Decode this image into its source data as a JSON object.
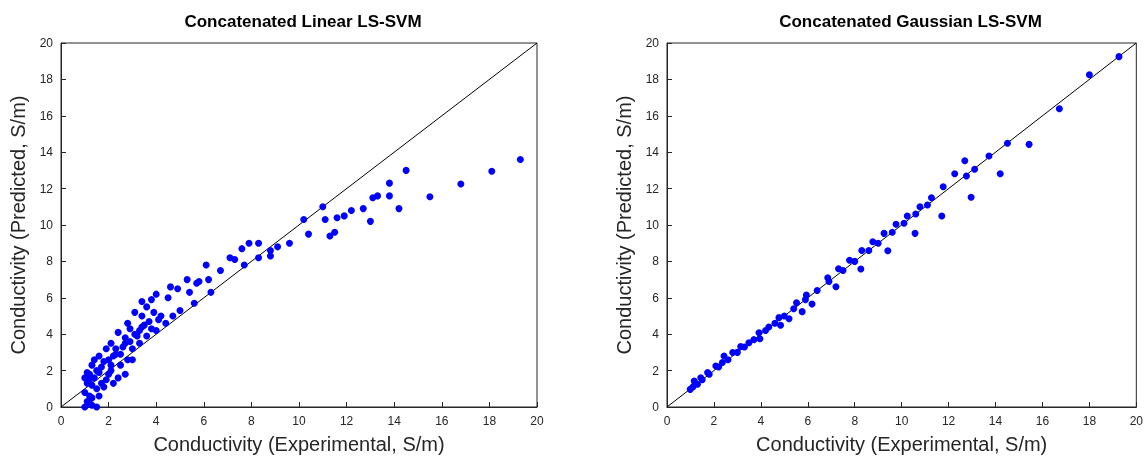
{
  "chart_data": [
    {
      "type": "scatter",
      "title": "Concatenated Linear LS-SVM",
      "xlabel": "Conductivity (Experimental, S/m)",
      "ylabel": "Conductivity (Predicted, S/m)",
      "xlim": [
        0,
        20
      ],
      "ylim": [
        0,
        20
      ],
      "xticks": [
        0,
        2,
        4,
        6,
        8,
        10,
        12,
        14,
        16,
        18,
        20
      ],
      "yticks": [
        0,
        2,
        4,
        6,
        8,
        10,
        12,
        14,
        16,
        18,
        20
      ],
      "series": [
        {
          "color": "#0000ff",
          "marker": "circle",
          "x": [
            19.3,
            18.1,
            16.8,
            15.5,
            14.5,
            14.2,
            13.8,
            13.8,
            13.3,
            13.1,
            13,
            12.7,
            12.2,
            11.9,
            11.6,
            11.1,
            11,
            11.5,
            11.3,
            10.2,
            10.4,
            9.6,
            9.1,
            8.8,
            8.8,
            8.3,
            8.3,
            7.9,
            7.6,
            7.3,
            7.1,
            7.7,
            6.7,
            6.1,
            6.2,
            5.8,
            5.3,
            5.7,
            5.4,
            4.9,
            4.6,
            4,
            4.5,
            3.8,
            3.4,
            3.6,
            3.1,
            3.4,
            3.5,
            2.8,
            2.9,
            2.4,
            2.7,
            2.1,
            1.9,
            2.3,
            1.6,
            1.3,
            1.2,
            1.1,
            1,
            1.1,
            1.3,
            1.5,
            1,
            1.2,
            1.5,
            1.9,
            1.6,
            2.2,
            2.1,
            2.5,
            2.8,
            3,
            3.3,
            3.6,
            4,
            4.4,
            4.7,
            5,
            5.6,
            6.3,
            2.7,
            3,
            1.4,
            1.7,
            2,
            2.3,
            2.6,
            3.2,
            3.8,
            4.1,
            2.4,
            1.3,
            1.5,
            1.8,
            1.2,
            1.1,
            1.2,
            1.4,
            1.6,
            1.8,
            2.0,
            2.2,
            2.5,
            2.7,
            3.1,
            3.4,
            3.7,
            4.2,
            1.0,
            1.3,
            1.7,
            2.1,
            2.9,
            3.3,
            3.9
          ],
          "values": [
            13.6,
            12.95,
            12.25,
            11.55,
            13,
            10.9,
            12.3,
            11.6,
            11.6,
            11.5,
            10.2,
            10.9,
            10.8,
            10.5,
            10.4,
            10.3,
            11,
            9.6,
            9.4,
            10.3,
            9.5,
            9,
            8.8,
            8.6,
            8.3,
            9,
            8.2,
            9,
            8.7,
            8.1,
            8.2,
            7.8,
            7.5,
            7.8,
            7,
            6.9,
            7,
            6.8,
            6.3,
            6.5,
            6.6,
            6.2,
            6,
            5.9,
            5.8,
            5.5,
            5.2,
            5,
            4.5,
            4.6,
            4.3,
            4.1,
            3.8,
            3.5,
            3.2,
            2.9,
            2.8,
            2.3,
            1.8,
            1.3,
            0.8,
            0.3,
            0.1,
            0,
            0,
            0.6,
            1,
            1.5,
            0.6,
            1.3,
            2,
            2.3,
            2.6,
            3.2,
            3.5,
            3.9,
            4.2,
            4.6,
            5,
            5.3,
            5.7,
            6.3,
            1.8,
            2.6,
            1.6,
            2.2,
            2.6,
            3.2,
            3.3,
            3.9,
            4.3,
            4.8,
            1.6,
            1.2,
            2,
            2.5,
            0.2,
            1.9,
            1.5,
            2.6,
            1.9,
            1.1,
            1.8,
            2.8,
            2.9,
            3.5,
            4.0,
            4.4,
            4.7,
            5.0,
            1.6,
            0.5,
            1.3,
            2.3,
            3.6,
            4.2,
            5.2
          ]
        },
        {
          "type": "line",
          "color": "#000000",
          "marker": "none",
          "line_style": "solid",
          "x": [
            0,
            20
          ],
          "values": [
            0,
            20
          ]
        }
      ]
    },
    {
      "type": "scatter",
      "title": "Concatenated Gaussian LS-SVM",
      "xlabel": "Conductivity (Experimental, S/m)",
      "ylabel": "Conductivity (Predicted, S/m)",
      "xlim": [
        0,
        20
      ],
      "ylim": [
        0,
        20
      ],
      "xticks": [
        0,
        2,
        4,
        6,
        8,
        10,
        12,
        14,
        16,
        18,
        20
      ],
      "yticks": [
        0,
        2,
        4,
        6,
        8,
        10,
        12,
        14,
        16,
        18,
        20
      ],
      "series": [
        {
          "color": "#0000ff",
          "marker": "circle",
          "x": [
            19.26,
            18,
            16.72,
            15.43,
            14.51,
            14.2,
            13.72,
            12.69,
            12.26,
            12.96,
            12.76,
            13.11,
            11.71,
            11.77,
            11.27,
            10.57,
            10.78,
            10.24,
            9.76,
            9.41,
            9.25,
            8.77,
            8.26,
            8.3,
            7.78,
            7.2,
            7.31,
            6.85,
            6.18,
            5.76,
            5.94,
            5.52,
            5.2,
            4.84,
            4.77,
            4.34,
            3.96,
            3.92,
            3.49,
            3.14,
            2.8,
            2.43,
            2.36,
            2.08,
            1.73,
            1.44,
            1.16,
            0.99,
            1.3,
            1.1,
            1.2,
            1.5,
            1.8,
            2.2,
            2.6,
            3,
            3.3,
            3.7,
            4.2,
            4.6,
            5,
            5.4,
            5.9,
            6.4,
            6.9,
            7.5,
            8,
            8.6,
            9,
            9.6,
            10.1,
            10.6,
            11.1
          ],
          "values": [
            19.25,
            18.26,
            16.39,
            14.43,
            14.49,
            12.82,
            13.79,
            13.53,
            12.82,
            11.52,
            12.69,
            13.06,
            10.49,
            12.1,
            11.5,
            9.54,
            11,
            10.49,
            10.04,
            8.59,
            9.54,
            9.08,
            7.58,
            8.6,
            8.06,
            6.61,
            7.6,
            7.1,
            5.66,
            5.24,
            6.15,
            5.73,
            4.85,
            4.49,
            4.91,
            4.4,
            3.75,
            4.08,
            3.53,
            3.32,
            2.99,
            2.8,
            2.44,
            2.25,
            1.89,
            1.61,
            1.43,
            0.97,
            1.25,
            1.1,
            1.3,
            1.5,
            1.8,
            2.2,
            2.6,
            3,
            3.3,
            3.7,
            4.2,
            4.6,
            5,
            5.4,
            5.9,
            6.4,
            6.9,
            7.5,
            8,
            8.6,
            9,
            9.6,
            10.1,
            10.6,
            11.1
          ]
        },
        {
          "type": "line",
          "color": "#000000",
          "marker": "none",
          "line_style": "solid",
          "x": [
            0,
            20
          ],
          "values": [
            0,
            20
          ]
        }
      ]
    }
  ]
}
